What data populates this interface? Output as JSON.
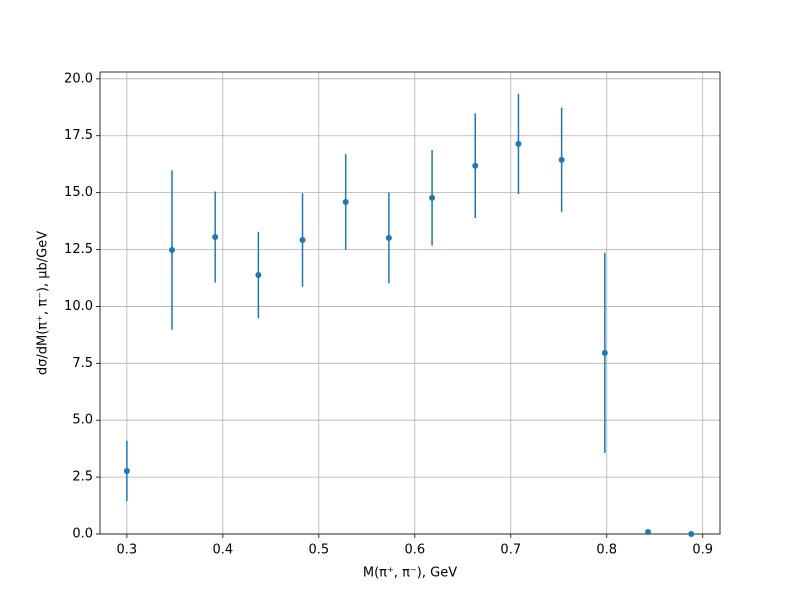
{
  "chart_data": {
    "type": "errorbar",
    "xlabel": "M(π⁺, π⁻), GeV",
    "ylabel": "dσ/dM(π⁺, π⁻), μb/GeV",
    "x": [
      0.3,
      0.347,
      0.392,
      0.437,
      0.483,
      0.528,
      0.573,
      0.618,
      0.663,
      0.708,
      0.753,
      0.798,
      0.843,
      0.888
    ],
    "values": [
      2.77,
      12.48,
      13.05,
      11.38,
      12.92,
      14.59,
      13.01,
      14.77,
      16.18,
      17.14,
      16.44,
      7.96,
      0.09,
      0
    ],
    "errors": [
      1.32,
      3.5,
      2.0,
      1.9,
      2.05,
      2.1,
      2.0,
      2.1,
      2.3,
      2.2,
      2.3,
      4.4,
      0,
      0
    ],
    "color": "#1f77b4",
    "xlim": [
      0.272,
      0.918
    ],
    "ylim": [
      0,
      20.3
    ],
    "xticks": [
      0.3,
      0.4,
      0.5,
      0.6,
      0.7,
      0.8,
      0.9
    ],
    "yticks": [
      {
        "value": 0,
        "label": "0.0"
      },
      2.5,
      {
        "value": 5,
        "label": "5.0"
      },
      7.5,
      {
        "value": 10,
        "label": "10.0"
      },
      12.5,
      {
        "value": 15,
        "label": "15.0"
      },
      17.5,
      {
        "value": 20,
        "label": "20.0"
      }
    ],
    "grid": true
  }
}
